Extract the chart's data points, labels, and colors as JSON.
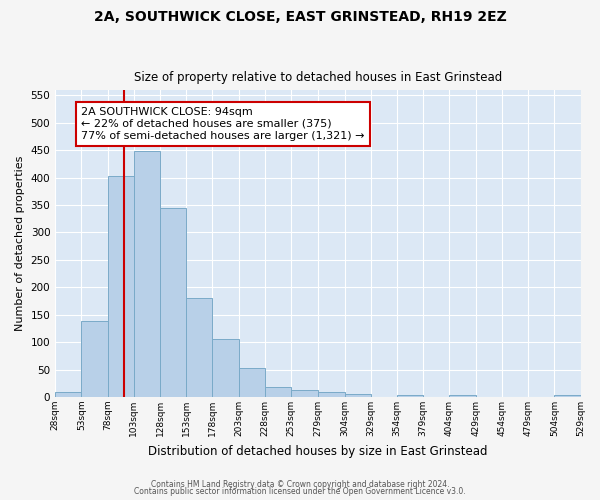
{
  "title": "2A, SOUTHWICK CLOSE, EAST GRINSTEAD, RH19 2EZ",
  "subtitle": "Size of property relative to detached houses in East Grinstead",
  "xlabel": "Distribution of detached houses by size in East Grinstead",
  "ylabel": "Number of detached properties",
  "bin_edges": [
    28,
    53,
    78,
    103,
    128,
    153,
    178,
    203,
    228,
    253,
    279,
    304,
    329,
    354,
    379,
    404,
    429,
    454,
    479,
    504,
    529
  ],
  "bin_labels": [
    "28sqm",
    "53sqm",
    "78sqm",
    "103sqm",
    "128sqm",
    "153sqm",
    "178sqm",
    "203sqm",
    "228sqm",
    "253sqm",
    "279sqm",
    "304sqm",
    "329sqm",
    "354sqm",
    "379sqm",
    "404sqm",
    "429sqm",
    "454sqm",
    "479sqm",
    "504sqm",
    "529sqm"
  ],
  "counts": [
    10,
    138,
    403,
    449,
    344,
    181,
    105,
    52,
    18,
    12,
    9,
    5,
    0,
    4,
    0,
    3,
    0,
    0,
    0,
    4
  ],
  "bar_color": "#b8d0e8",
  "bar_edge_color": "#7aaac8",
  "vline_x": 94,
  "vline_color": "#cc0000",
  "ylim": [
    0,
    560
  ],
  "yticks": [
    0,
    50,
    100,
    150,
    200,
    250,
    300,
    350,
    400,
    450,
    500,
    550
  ],
  "annotation_text": "2A SOUTHWICK CLOSE: 94sqm\n← 22% of detached houses are smaller (375)\n77% of semi-detached houses are larger (1,321) →",
  "annotation_box_facecolor": "white",
  "annotation_box_edgecolor": "#cc0000",
  "footer_line1": "Contains HM Land Registry data © Crown copyright and database right 2024.",
  "footer_line2": "Contains public sector information licensed under the Open Government Licence v3.0.",
  "fig_facecolor": "#f5f5f5",
  "plot_facecolor": "#dce8f5"
}
